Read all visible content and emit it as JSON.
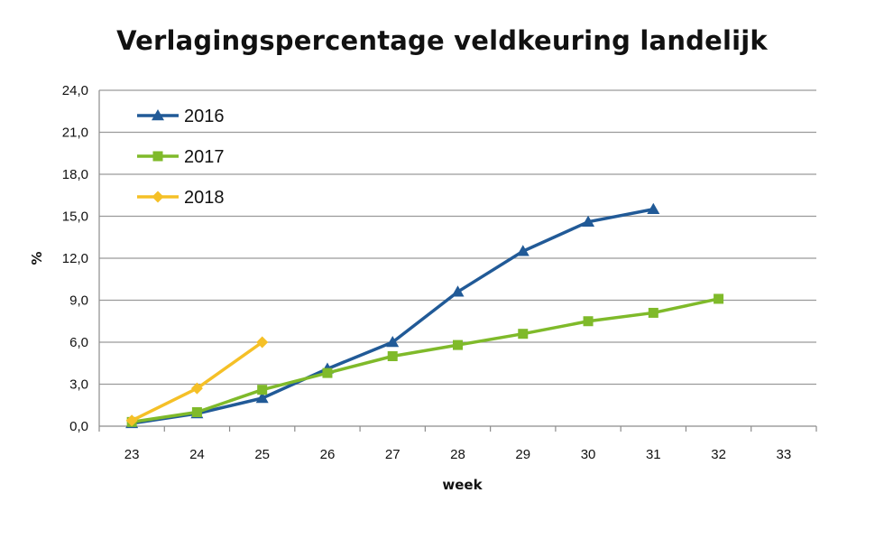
{
  "chart_data": {
    "type": "line",
    "title": "Verlagingspercentage veldkeuring landelijk",
    "xlabel": "week",
    "ylabel": "%",
    "categories": [
      "23",
      "24",
      "25",
      "26",
      "27",
      "28",
      "29",
      "30",
      "31",
      "32",
      "33"
    ],
    "y_tick_labels": [
      "0,0",
      "3,0",
      "6,0",
      "9,0",
      "12,0",
      "15,0",
      "18,0",
      "21,0",
      "24,0"
    ],
    "ylim": [
      0,
      24
    ],
    "grid": "horizontal",
    "legend_position": "top-left",
    "series": [
      {
        "name": "2016",
        "color": "#215a97",
        "marker": "triangle",
        "values": [
          0.2,
          0.9,
          2.0,
          4.1,
          6.0,
          9.6,
          12.5,
          14.6,
          15.5,
          null,
          null
        ]
      },
      {
        "name": "2017",
        "color": "#7fba2a",
        "marker": "square",
        "values": [
          0.3,
          1.0,
          2.6,
          3.8,
          5.0,
          5.8,
          6.6,
          7.5,
          8.1,
          9.1,
          null
        ]
      },
      {
        "name": "2018",
        "color": "#f5c027",
        "marker": "diamond",
        "values": [
          0.4,
          2.7,
          6.0,
          null,
          null,
          null,
          null,
          null,
          null,
          null,
          null
        ]
      }
    ]
  }
}
